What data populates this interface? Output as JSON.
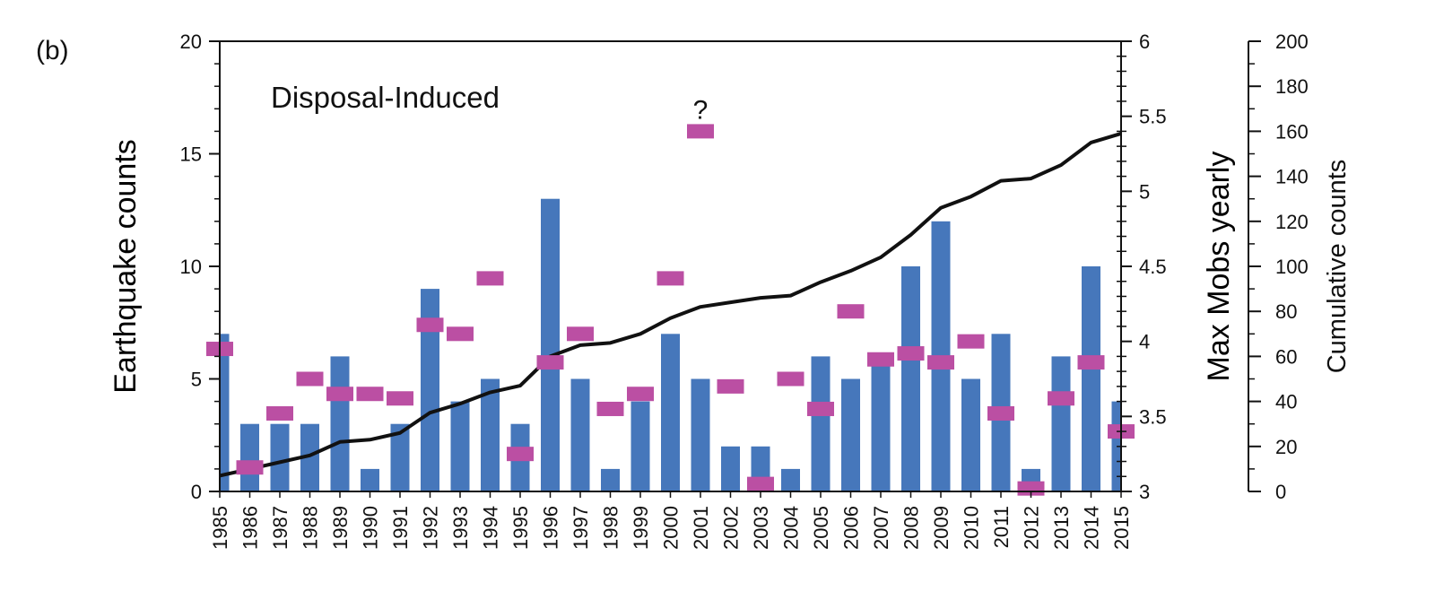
{
  "panel_label": "(b)",
  "colors": {
    "bar": "#4677bb",
    "magnitude": "#bb4fa3",
    "cumulative": "#111111",
    "axis": "#111111"
  },
  "chart_data": {
    "type": "bar",
    "title": "Disposal-Induced",
    "categories": [
      "1985",
      "1986",
      "1987",
      "1988",
      "1989",
      "1990",
      "1991",
      "1992",
      "1993",
      "1994",
      "1995",
      "1996",
      "1997",
      "1998",
      "1999",
      "2000",
      "2001",
      "2002",
      "2003",
      "2004",
      "2005",
      "2006",
      "2007",
      "2008",
      "2009",
      "2010",
      "2011",
      "2012",
      "2013",
      "2014",
      "2015"
    ],
    "series": [
      {
        "name": "Earthquake counts",
        "axis": "left",
        "kind": "bar",
        "values": [
          7,
          3,
          3,
          3,
          6,
          1,
          3,
          9,
          4,
          5,
          3,
          13,
          5,
          1,
          4,
          7,
          5,
          2,
          2,
          1,
          6,
          5,
          6,
          10,
          12,
          5,
          7,
          1,
          6,
          10,
          4
        ]
      },
      {
        "name": "Max Mobs yearly",
        "axis": "right",
        "kind": "marker",
        "values": [
          3.95,
          3.16,
          3.52,
          3.75,
          3.65,
          3.65,
          3.62,
          4.11,
          4.05,
          4.42,
          3.25,
          3.86,
          4.05,
          3.55,
          3.65,
          4.42,
          5.4,
          3.7,
          3.05,
          3.75,
          3.55,
          4.2,
          3.88,
          3.92,
          3.86,
          4.0,
          3.52,
          3.02,
          3.62,
          3.86,
          3.4
        ]
      },
      {
        "name": "Cumulative counts",
        "axis": "far-right",
        "kind": "line",
        "values": [
          7,
          10,
          13,
          16,
          22,
          23,
          26,
          35,
          39,
          44,
          47,
          60,
          65,
          66,
          70,
          77,
          82,
          84,
          86,
          87,
          93,
          98,
          104,
          114,
          126,
          131,
          138,
          139,
          145,
          155,
          159
        ]
      }
    ],
    "ylabel": "Earthquake counts",
    "ylim": [
      0,
      20
    ],
    "yticks": [
      "0",
      "5",
      "10",
      "15",
      "20"
    ],
    "y2label": "Max Mobs yearly",
    "y2lim": [
      3,
      6
    ],
    "y2ticks": [
      "3",
      "3.5",
      "4",
      "4.5",
      "5",
      "5.5",
      "6"
    ],
    "y3label": "Cumulative counts",
    "y3lim": [
      0,
      200
    ],
    "y3ticks": [
      "0",
      "20",
      "40",
      "60",
      "80",
      "100",
      "120",
      "140",
      "160",
      "180",
      "200"
    ],
    "annotations": [
      {
        "text": "?",
        "category": "2001"
      }
    ]
  }
}
